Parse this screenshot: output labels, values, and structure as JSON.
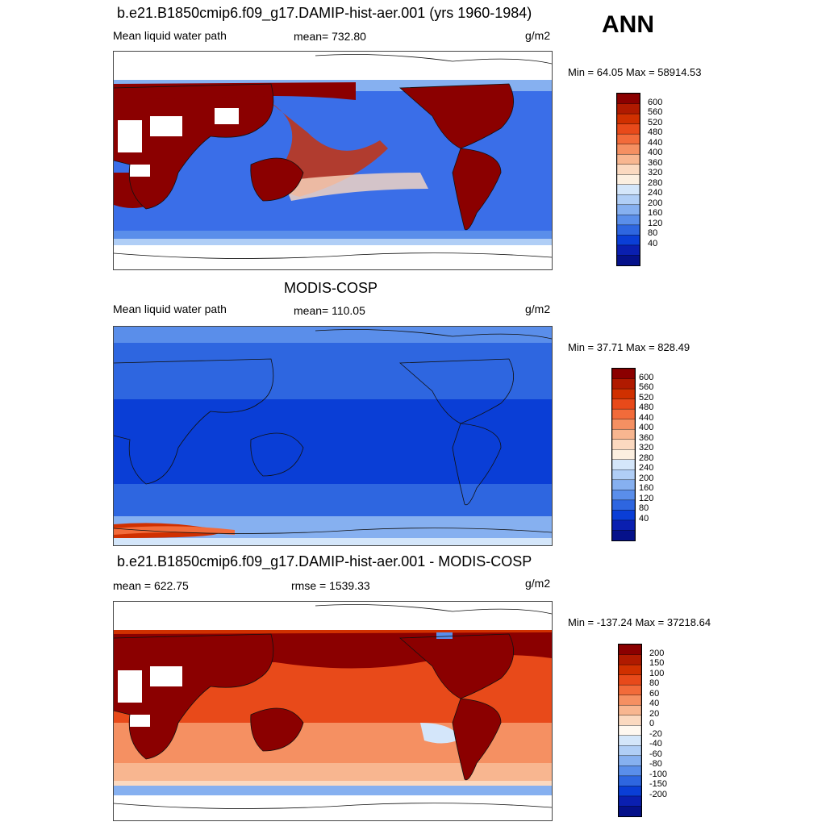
{
  "header": {
    "season": "ANN"
  },
  "panels": [
    {
      "title": "b.e21.B1850cmip6.f09_g17.DAMIP-hist-aer.001 (yrs 1960-1984)",
      "left_label": "Mean liquid water path",
      "center_label": "mean= 732.80",
      "units": "g/m2",
      "minmax": "Min =  64.05 Max = 58914.53"
    },
    {
      "title": "MODIS-COSP",
      "left_label": "Mean liquid water path",
      "center_label": "mean= 110.05",
      "units": "g/m2",
      "minmax": "Min =  37.71 Max = 828.49"
    },
    {
      "title": "b.e21.B1850cmip6.f09_g17.DAMIP-hist-aer.001 - MODIS-COSP",
      "left_label": "mean = 622.75",
      "center_label": "rmse = 1539.33",
      "units": "g/m2",
      "minmax": "Min = -137.24 Max = 37218.64"
    }
  ],
  "colorbars": {
    "abs": {
      "labels": [
        "600",
        "560",
        "520",
        "480",
        "440",
        "400",
        "360",
        "320",
        "280",
        "240",
        "200",
        "160",
        "120",
        "80",
        "40"
      ],
      "colors": [
        "#8b0000",
        "#b01a00",
        "#d03000",
        "#e84a1a",
        "#f26b3a",
        "#f59062",
        "#f8b690",
        "#fbd9c0",
        "#fcefe0",
        "#d4e6fa",
        "#b0cef6",
        "#86b0f0",
        "#5a8eea",
        "#2e66e0",
        "#0a3ed6",
        "#0a1fb0",
        "#05118a"
      ]
    },
    "diff": {
      "labels": [
        "200",
        "150",
        "100",
        "80",
        "60",
        "40",
        "20",
        "0",
        "-20",
        "-40",
        "-60",
        "-80",
        "-100",
        "-150",
        "-200"
      ],
      "colors": [
        "#8b0000",
        "#b01a00",
        "#d03000",
        "#e84a1a",
        "#f26b3a",
        "#f59062",
        "#f8b690",
        "#fbd9c0",
        "#fff8f0",
        "#d4e6fa",
        "#b0cef6",
        "#86b0f0",
        "#5a8eea",
        "#2e66e0",
        "#0a3ed6",
        "#0a1fb0",
        "#05118a"
      ]
    }
  },
  "chart_data": [
    {
      "type": "heatmap",
      "title": "b.e21.B1850cmip6.f09_g17.DAMIP-hist-aer.001 (yrs 1960-1984)",
      "variable": "Mean liquid water path",
      "units": "g/m2",
      "mean": 732.8,
      "min": 64.05,
      "max": 58914.53,
      "levels": [
        40,
        80,
        120,
        160,
        200,
        240,
        280,
        320,
        360,
        400,
        440,
        480,
        520,
        560,
        600
      ]
    },
    {
      "type": "heatmap",
      "title": "MODIS-COSP",
      "variable": "Mean liquid water path",
      "units": "g/m2",
      "mean": 110.05,
      "min": 37.71,
      "max": 828.49,
      "levels": [
        40,
        80,
        120,
        160,
        200,
        240,
        280,
        320,
        360,
        400,
        440,
        480,
        520,
        560,
        600
      ]
    },
    {
      "type": "heatmap",
      "title": "b.e21.B1850cmip6.f09_g17.DAMIP-hist-aer.001 - MODIS-COSP",
      "units": "g/m2",
      "mean": 622.75,
      "rmse": 1539.33,
      "min": -137.24,
      "max": 37218.64,
      "levels": [
        -200,
        -150,
        -100,
        -80,
        -60,
        -40,
        -20,
        0,
        20,
        40,
        60,
        80,
        100,
        150,
        200
      ]
    }
  ]
}
